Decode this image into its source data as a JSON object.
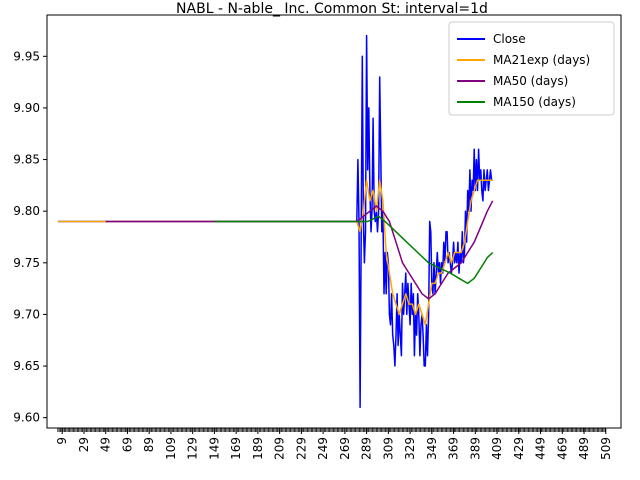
{
  "chart_data": {
    "type": "line",
    "title": "NABL - N-able_ Inc. Common St: interval=1d",
    "xlim": [
      -5,
      523
    ],
    "ylim": [
      9.59,
      9.99
    ],
    "x_ticks": [
      9,
      29,
      49,
      69,
      89,
      109,
      129,
      149,
      169,
      189,
      209,
      229,
      249,
      269,
      289,
      309,
      329,
      349,
      369,
      389,
      409,
      429,
      449,
      469,
      489,
      509
    ],
    "y_ticks": [
      9.6,
      9.65,
      9.7,
      9.75,
      9.8,
      9.85,
      9.9,
      9.95
    ],
    "y_tick_labels": [
      "9.60",
      "9.65",
      "9.70",
      "9.75",
      "9.80",
      "9.85",
      "9.90",
      "9.95"
    ],
    "legend_position": "top-right",
    "series": [
      {
        "name": "Close",
        "color": "#0000ff",
        "points": [
          [
            5,
            9.79
          ],
          [
            280,
            9.79
          ],
          [
            281,
            9.85
          ],
          [
            282,
            9.79
          ],
          [
            283,
            9.61
          ],
          [
            284,
            9.78
          ],
          [
            285,
            9.95
          ],
          [
            286,
            9.79
          ],
          [
            287,
            9.75
          ],
          [
            288,
            9.78
          ],
          [
            289,
            9.97
          ],
          [
            290,
            9.84
          ],
          [
            291,
            9.9
          ],
          [
            292,
            9.82
          ],
          [
            293,
            9.78
          ],
          [
            294,
            9.8
          ],
          [
            295,
            9.89
          ],
          [
            296,
            9.8
          ],
          [
            297,
            9.79
          ],
          [
            298,
            9.8
          ],
          [
            299,
            9.78
          ],
          [
            300,
            9.8
          ],
          [
            301,
            9.93
          ],
          [
            302,
            9.86
          ],
          [
            303,
            9.78
          ],
          [
            304,
            9.8
          ],
          [
            305,
            9.72
          ],
          [
            306,
            9.76
          ],
          [
            307,
            9.72
          ],
          [
            308,
            9.76
          ],
          [
            309,
            9.75
          ],
          [
            310,
            9.7
          ],
          [
            311,
            9.69
          ],
          [
            312,
            9.72
          ],
          [
            313,
            9.68
          ],
          [
            314,
            9.67
          ],
          [
            315,
            9.65
          ],
          [
            316,
            9.68
          ],
          [
            317,
            9.72
          ],
          [
            318,
            9.67
          ],
          [
            319,
            9.7
          ],
          [
            320,
            9.68
          ],
          [
            321,
            9.66
          ],
          [
            322,
            9.73
          ],
          [
            323,
            9.7
          ],
          [
            324,
            9.72
          ],
          [
            325,
            9.74
          ],
          [
            326,
            9.7
          ],
          [
            327,
            9.73
          ],
          [
            328,
            9.71
          ],
          [
            329,
            9.69
          ],
          [
            330,
            9.73
          ],
          [
            331,
            9.7
          ],
          [
            332,
            9.72
          ],
          [
            333,
            9.66
          ],
          [
            334,
            9.7
          ],
          [
            335,
            9.68
          ],
          [
            336,
            9.72
          ],
          [
            337,
            9.7
          ],
          [
            338,
            9.66
          ],
          [
            339,
            9.69
          ],
          [
            340,
            9.7
          ],
          [
            341,
            9.68
          ],
          [
            342,
            9.65
          ],
          [
            343,
            9.65
          ],
          [
            344,
            9.69
          ],
          [
            345,
            9.66
          ],
          [
            346,
            9.7
          ],
          [
            347,
            9.79
          ],
          [
            348,
            9.78
          ],
          [
            349,
            9.73
          ],
          [
            350,
            9.72
          ],
          [
            351,
            9.75
          ],
          [
            352,
            9.72
          ],
          [
            353,
            9.74
          ],
          [
            354,
            9.76
          ],
          [
            355,
            9.74
          ],
          [
            356,
            9.75
          ],
          [
            357,
            9.73
          ],
          [
            358,
            9.75
          ],
          [
            359,
            9.74
          ],
          [
            360,
            9.77
          ],
          [
            361,
            9.75
          ],
          [
            362,
            9.78
          ],
          [
            363,
            9.78
          ],
          [
            364,
            9.75
          ],
          [
            365,
            9.76
          ],
          [
            366,
            9.75
          ],
          [
            367,
            9.74
          ],
          [
            368,
            9.75
          ],
          [
            369,
            9.77
          ],
          [
            370,
            9.75
          ],
          [
            371,
            9.76
          ],
          [
            372,
            9.75
          ],
          [
            373,
            9.77
          ],
          [
            374,
            9.74
          ],
          [
            375,
            9.76
          ],
          [
            376,
            9.75
          ],
          [
            377,
            9.78
          ],
          [
            378,
            9.75
          ],
          [
            379,
            9.76
          ],
          [
            380,
            9.8
          ],
          [
            381,
            9.77
          ],
          [
            382,
            9.82
          ],
          [
            383,
            9.8
          ],
          [
            384,
            9.84
          ],
          [
            385,
            9.8
          ],
          [
            386,
            9.83
          ],
          [
            387,
            9.82
          ],
          [
            388,
            9.86
          ],
          [
            389,
            9.82
          ],
          [
            390,
            9.85
          ],
          [
            391,
            9.82
          ],
          [
            392,
            9.86
          ],
          [
            393,
            9.83
          ],
          [
            394,
            9.84
          ],
          [
            395,
            9.82
          ],
          [
            396,
            9.81
          ],
          [
            397,
            9.84
          ],
          [
            398,
            9.82
          ],
          [
            399,
            9.83
          ],
          [
            400,
            9.84
          ],
          [
            401,
            9.82
          ],
          [
            402,
            9.83
          ],
          [
            403,
            9.84
          ],
          [
            404,
            9.83
          ],
          [
            405,
            9.83
          ]
        ]
      },
      {
        "name": "MA21exp (days)",
        "color": "#ffa500",
        "points": [
          [
            5,
            9.79
          ],
          [
            280,
            9.79
          ],
          [
            283,
            9.78
          ],
          [
            286,
            9.8
          ],
          [
            289,
            9.83
          ],
          [
            292,
            9.81
          ],
          [
            295,
            9.82
          ],
          [
            298,
            9.8
          ],
          [
            301,
            9.83
          ],
          [
            304,
            9.81
          ],
          [
            307,
            9.76
          ],
          [
            310,
            9.74
          ],
          [
            313,
            9.72
          ],
          [
            316,
            9.71
          ],
          [
            319,
            9.7
          ],
          [
            322,
            9.71
          ],
          [
            325,
            9.72
          ],
          [
            328,
            9.71
          ],
          [
            331,
            9.71
          ],
          [
            334,
            9.7
          ],
          [
            337,
            9.71
          ],
          [
            340,
            9.7
          ],
          [
            343,
            9.69
          ],
          [
            346,
            9.71
          ],
          [
            349,
            9.73
          ],
          [
            352,
            9.73
          ],
          [
            355,
            9.74
          ],
          [
            358,
            9.74
          ],
          [
            361,
            9.75
          ],
          [
            364,
            9.76
          ],
          [
            367,
            9.75
          ],
          [
            370,
            9.76
          ],
          [
            373,
            9.76
          ],
          [
            376,
            9.76
          ],
          [
            379,
            9.77
          ],
          [
            382,
            9.79
          ],
          [
            385,
            9.81
          ],
          [
            388,
            9.82
          ],
          [
            391,
            9.83
          ],
          [
            394,
            9.83
          ],
          [
            397,
            9.83
          ],
          [
            400,
            9.83
          ],
          [
            403,
            9.83
          ],
          [
            405,
            9.83
          ]
        ]
      },
      {
        "name": "MA50 (days)",
        "color": "#800080",
        "points": [
          [
            49,
            9.79
          ],
          [
            280,
            9.79
          ],
          [
            286,
            9.795
          ],
          [
            292,
            9.8
          ],
          [
            298,
            9.805
          ],
          [
            304,
            9.8
          ],
          [
            310,
            9.79
          ],
          [
            316,
            9.77
          ],
          [
            322,
            9.75
          ],
          [
            328,
            9.74
          ],
          [
            334,
            9.73
          ],
          [
            340,
            9.72
          ],
          [
            346,
            9.715
          ],
          [
            352,
            9.72
          ],
          [
            358,
            9.73
          ],
          [
            364,
            9.74
          ],
          [
            370,
            9.745
          ],
          [
            376,
            9.75
          ],
          [
            382,
            9.76
          ],
          [
            388,
            9.77
          ],
          [
            394,
            9.785
          ],
          [
            400,
            9.8
          ],
          [
            405,
            9.81
          ]
        ]
      },
      {
        "name": "MA150 (days)",
        "color": "#008000",
        "points": [
          [
            149,
            9.79
          ],
          [
            280,
            9.79
          ],
          [
            290,
            9.79
          ],
          [
            300,
            9.795
          ],
          [
            306,
            9.79
          ],
          [
            316,
            9.78
          ],
          [
            326,
            9.77
          ],
          [
            336,
            9.76
          ],
          [
            346,
            9.75
          ],
          [
            356,
            9.745
          ],
          [
            366,
            9.74
          ],
          [
            374,
            9.735
          ],
          [
            382,
            9.73
          ],
          [
            388,
            9.735
          ],
          [
            394,
            9.745
          ],
          [
            400,
            9.755
          ],
          [
            405,
            9.76
          ]
        ]
      }
    ]
  }
}
